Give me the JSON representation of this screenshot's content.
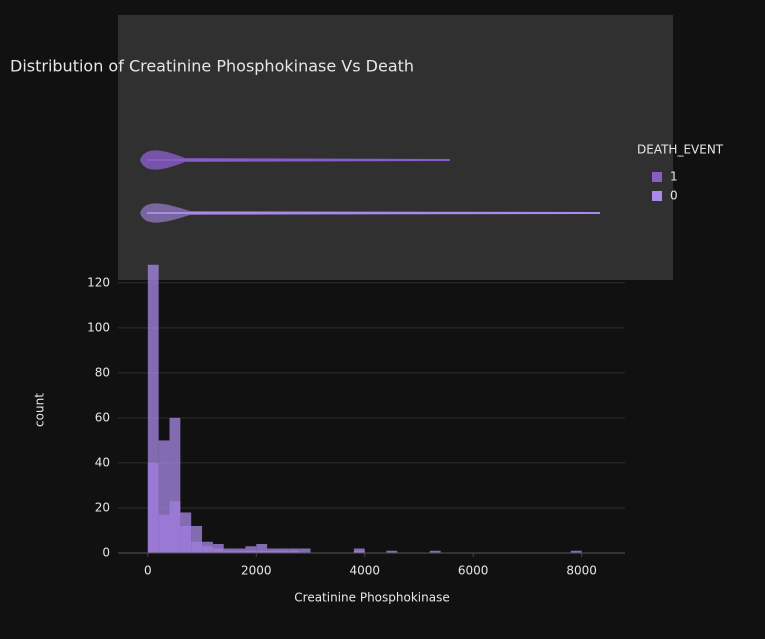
{
  "chart_data": {
    "type": "histogram",
    "title": "Distribution of Creatinine Phosphokinase Vs Death",
    "xlabel": "Creatinine Phosphokinase",
    "ylabel": "count",
    "legend_title": "DEATH_EVENT",
    "legend": "right",
    "grid": true,
    "bins": [
      0,
      200,
      400,
      600,
      800,
      1000,
      1200,
      1400,
      1600,
      1800,
      2000,
      2200,
      2400,
      2600,
      2800,
      3000,
      3200,
      3400,
      3600,
      3800,
      4000,
      4200,
      4400,
      4600,
      4800,
      5000,
      5200,
      5400,
      5600,
      5800,
      6000,
      6200,
      6400,
      6600,
      6800,
      7000,
      7200,
      7400,
      7600,
      7800,
      8000,
      8200
    ],
    "series": [
      {
        "name": "1",
        "color": "#8a5cc8",
        "values": [
          40,
          17,
          23,
          12,
          5,
          3,
          2,
          1,
          1,
          1,
          1,
          1,
          1,
          1,
          0,
          0,
          0,
          0,
          0,
          1,
          0,
          0,
          0,
          0,
          0,
          0,
          0,
          0,
          0,
          0,
          0,
          0,
          0,
          0,
          0,
          0,
          0,
          0,
          0,
          0,
          0
        ]
      },
      {
        "name": "0",
        "color": "#a98ae8",
        "values": [
          128,
          50,
          60,
          18,
          12,
          5,
          4,
          2,
          2,
          3,
          4,
          2,
          2,
          2,
          2,
          0,
          0,
          0,
          0,
          2,
          0,
          0,
          1,
          0,
          0,
          0,
          1,
          0,
          0,
          0,
          0,
          0,
          0,
          0,
          0,
          0,
          0,
          0,
          0,
          1,
          0
        ]
      }
    ],
    "xlim": [
      -550,
      8800
    ],
    "ylim": [
      0,
      135
    ],
    "xticks": [
      0,
      2000,
      4000,
      6000,
      8000
    ],
    "yticks": [
      0,
      20,
      40,
      60,
      80,
      100,
      120
    ]
  }
}
